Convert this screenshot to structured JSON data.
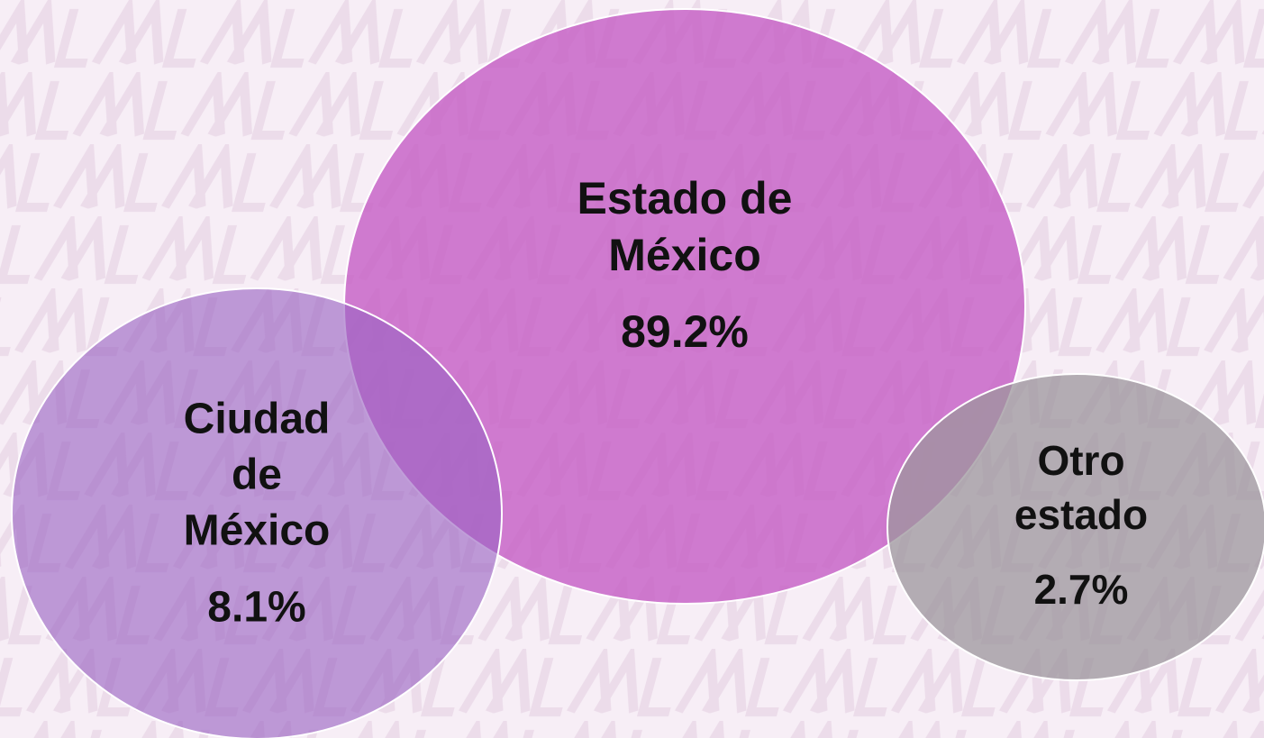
{
  "nodes": [
    {
      "label": [
        "Estado de",
        "México"
      ],
      "value": "89.2%"
    },
    {
      "label": [
        "Ciudad",
        "de",
        "México"
      ],
      "value": "8.1%"
    },
    {
      "label": [
        "Otro",
        "estado"
      ],
      "value": "2.7%"
    }
  ]
}
